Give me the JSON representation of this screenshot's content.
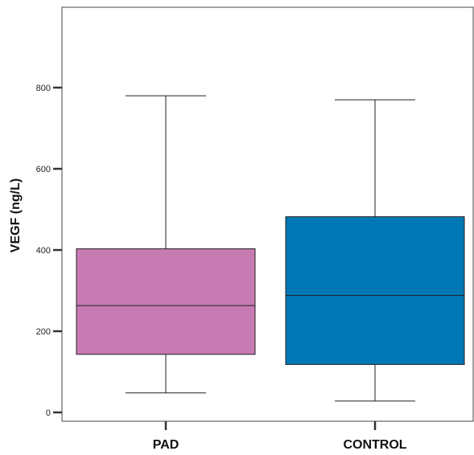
{
  "chart_data": {
    "type": "box",
    "title": "",
    "xlabel": "",
    "ylabel": "VEGF (ng/L)",
    "ylim": [
      -10,
      1000
    ],
    "yticks": [
      0,
      200,
      400,
      600,
      800
    ],
    "grid": false,
    "categories": [
      "PAD",
      "CONTROL"
    ],
    "boxes": [
      {
        "category": "PAD",
        "min": 48,
        "q1": 143,
        "median": 263,
        "q3": 403,
        "max": 780,
        "color": "#c87bb3"
      },
      {
        "category": "CONTROL",
        "min": 28,
        "q1": 118,
        "median": 288,
        "q3": 482,
        "max": 770,
        "color": "#0077b5"
      }
    ]
  },
  "colors": {
    "axis": "#333333",
    "frame": "#444444",
    "box_edge": "#222222",
    "whisker": "#222222"
  }
}
